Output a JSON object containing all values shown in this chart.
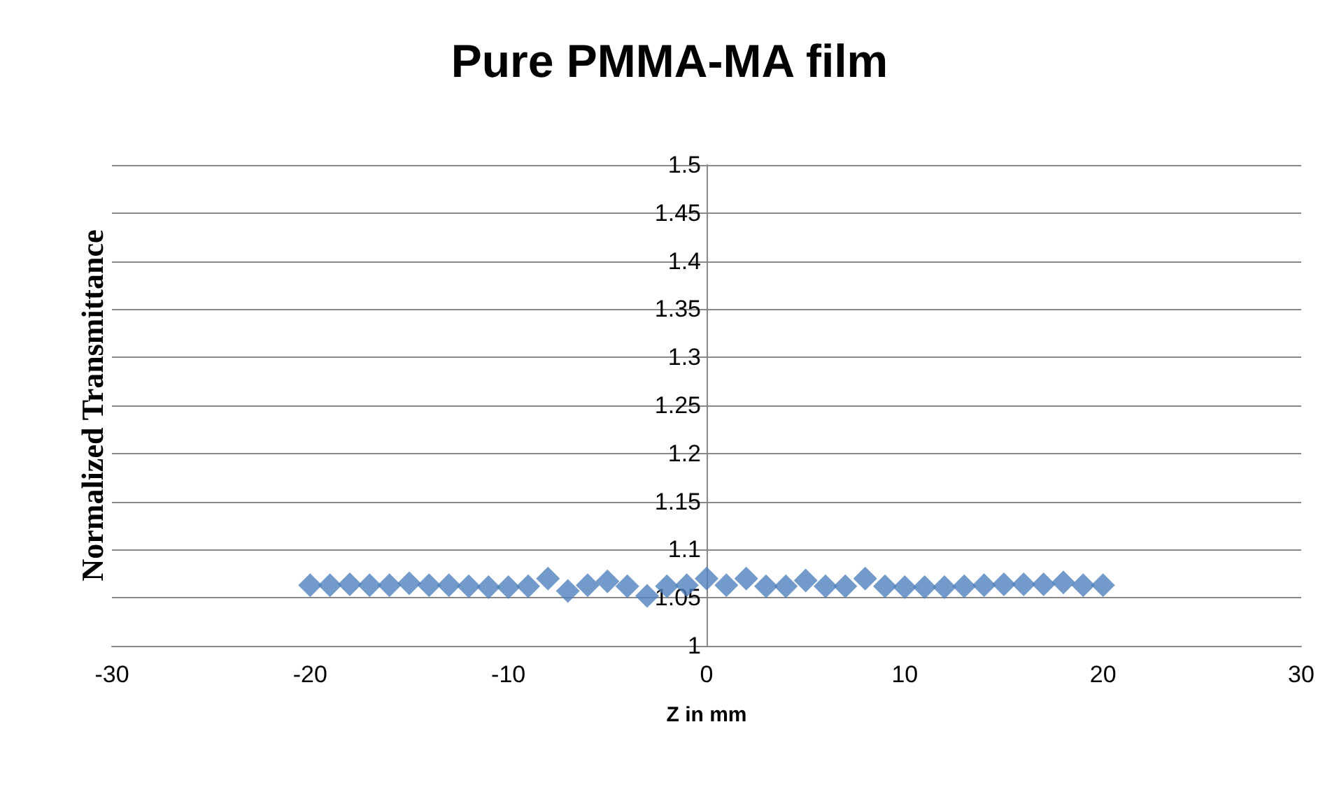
{
  "chart_data": {
    "type": "scatter",
    "title": "Pure PMMA-MA film",
    "xlabel": "Z in mm",
    "ylabel": "Normalized Transmittance",
    "x": [
      -20,
      -19,
      -18,
      -17,
      -16,
      -15,
      -14,
      -13,
      -12,
      -11,
      -10,
      -9,
      -8,
      -7,
      -6,
      -5,
      -4,
      -3,
      -2,
      -1,
      0,
      1,
      2,
      3,
      4,
      5,
      6,
      7,
      8,
      9,
      10,
      11,
      12,
      13,
      14,
      15,
      16,
      17,
      18,
      19,
      20
    ],
    "series": [
      {
        "color": "#4f81bd",
        "values": [
          1.063,
          1.063,
          1.064,
          1.063,
          1.063,
          1.065,
          1.063,
          1.063,
          1.062,
          1.061,
          1.061,
          1.062,
          1.07,
          1.057,
          1.063,
          1.067,
          1.062,
          1.052,
          1.062,
          1.063,
          1.07,
          1.063,
          1.07,
          1.062,
          1.062,
          1.068,
          1.062,
          1.062,
          1.07,
          1.062,
          1.061,
          1.061,
          1.061,
          1.062,
          1.063,
          1.064,
          1.064,
          1.064,
          1.066,
          1.063,
          1.063
        ]
      }
    ],
    "xlim": [
      -30,
      30
    ],
    "xticks": [
      -30,
      -20,
      -10,
      0,
      10,
      20,
      30
    ],
    "ylim": [
      1,
      1.5
    ],
    "yticks": [
      1,
      1.05,
      1.1,
      1.15,
      1.2,
      1.25,
      1.3,
      1.35,
      1.4,
      1.45,
      1.5
    ],
    "grid": "y",
    "marker": "diamond"
  }
}
